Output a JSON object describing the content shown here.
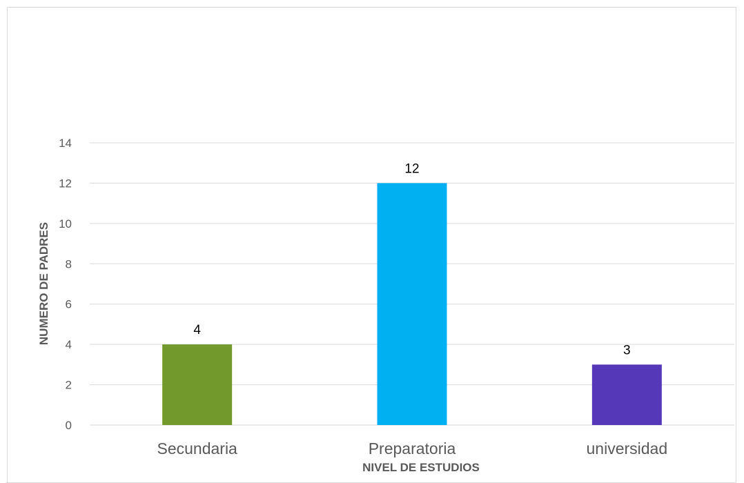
{
  "chart_data": {
    "type": "bar",
    "categories": [
      "Secundaria",
      "Preparatoria",
      "universidad"
    ],
    "values": [
      4,
      12,
      3
    ],
    "colors": [
      "#72992c",
      "#00b0f0",
      "#5538b8"
    ],
    "xlabel": "NIVEL DE ESTUDIOS",
    "ylabel": "NUMERO DE PADRES",
    "ylim": [
      0,
      14
    ],
    "yticks": [
      0,
      2,
      4,
      6,
      8,
      10,
      12,
      14
    ],
    "grid": true,
    "data_labels": true
  }
}
